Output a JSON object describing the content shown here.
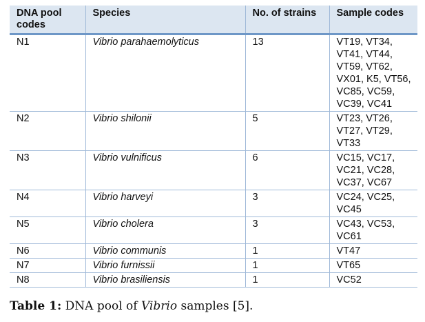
{
  "table": {
    "headers": {
      "pool": "DNA pool codes",
      "species": "Species",
      "strains": "No. of strains",
      "samples": "Sample codes"
    },
    "rows": [
      {
        "pool": "N1",
        "species": "Vibrio parahaemolyticus",
        "strains": "13",
        "samples": "VT19, VT34, VT41, VT44, VT59, VT62, VX01, K5, VT56, VC85, VC59, VC39, VC41"
      },
      {
        "pool": "N2",
        "species": "Vibrio shilonii",
        "strains": "5",
        "samples": "VT23, VT26, VT27, VT29, VT33"
      },
      {
        "pool": "N3",
        "species": "Vibrio vulnificus",
        "strains": "6",
        "samples": "VC15, VC17, VC21, VC28, VC37, VC67"
      },
      {
        "pool": "N4",
        "species": "Vibrio harveyi",
        "strains": "3",
        "samples": "VC24, VC25, VC45"
      },
      {
        "pool": "N5",
        "species": "Vibrio cholera",
        "strains": "3",
        "samples": "VC43, VC53, VC61"
      },
      {
        "pool": "N6",
        "species": "Vibrio communis",
        "strains": "1",
        "samples": "VT47"
      },
      {
        "pool": "N7",
        "species": "Vibrio furnissii",
        "strains": "1",
        "samples": "VT65"
      },
      {
        "pool": "N8",
        "species": "Vibrio brasiliensis",
        "strains": "1",
        "samples": "VC52"
      }
    ]
  },
  "caption": {
    "label": "Table 1:",
    "text_before": " DNA pool of ",
    "genus": "Vibrio",
    "text_after": " samples [5]."
  }
}
